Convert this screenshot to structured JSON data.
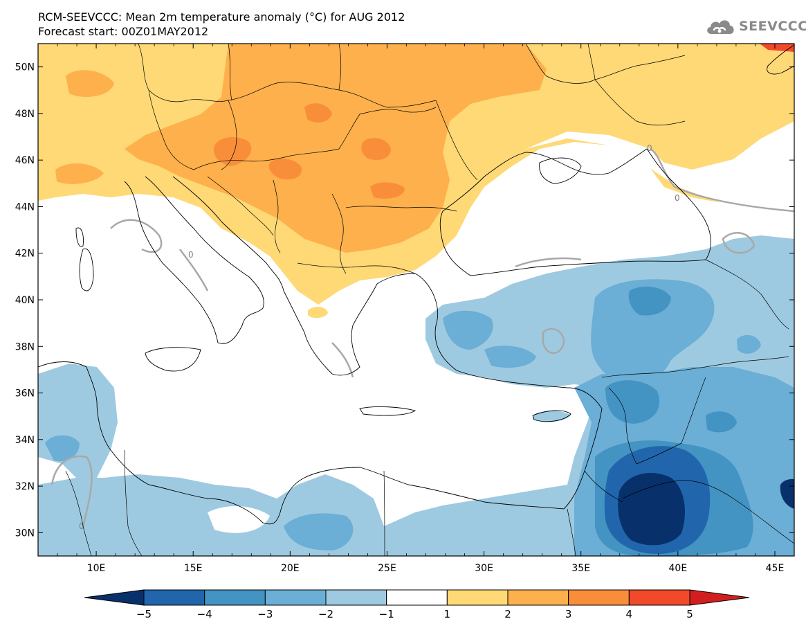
{
  "title": {
    "line1": "RCM-SEEVCCC: Mean 2m temperature anomaly (°C) for AUG 2012",
    "line2": "Forecast start: 00Z01MAY2012"
  },
  "logo": {
    "text": "SEEVCCC",
    "icon": "cloud-icon"
  },
  "map": {
    "lat_labels": [
      "50N",
      "48N",
      "46N",
      "44N",
      "42N",
      "40N",
      "38N",
      "36N",
      "34N",
      "32N",
      "30N"
    ],
    "lon_labels": [
      "10E",
      "15E",
      "20E",
      "25E",
      "30E",
      "35E",
      "40E",
      "45E"
    ],
    "lat_values": [
      50,
      48,
      46,
      44,
      42,
      40,
      38,
      36,
      34,
      32,
      30
    ],
    "lon_values": [
      10,
      15,
      20,
      25,
      30,
      35,
      40,
      45
    ],
    "extent": {
      "lon": [
        7,
        46
      ],
      "lat": [
        29,
        51
      ]
    },
    "contour_label": "0"
  },
  "colorbar": {
    "ticks": [
      "−5",
      "−4",
      "−3",
      "−2",
      "−1",
      "1",
      "2",
      "3",
      "4",
      "5"
    ],
    "colors": [
      "#08306b",
      "#2166ac",
      "#4393c3",
      "#6baed6",
      "#9ecae1",
      "#ffffff",
      "#fed976",
      "#fdb04b",
      "#f98e3a",
      "#f04a2a",
      "#d11f1f"
    ]
  },
  "colors": {
    "anom_plus_1": "#fed976",
    "anom_plus_2": "#fdb04b",
    "anom_plus_3": "#f98e3a",
    "anom_plus_4": "#f04a2a",
    "anom_minus_1": "#9ecae1",
    "anom_minus_2": "#6baed6",
    "anom_minus_3": "#4393c3",
    "anom_minus_4": "#2166ac",
    "anom_minus_5": "#08306b",
    "contour_zero": "#a8a8a8"
  }
}
